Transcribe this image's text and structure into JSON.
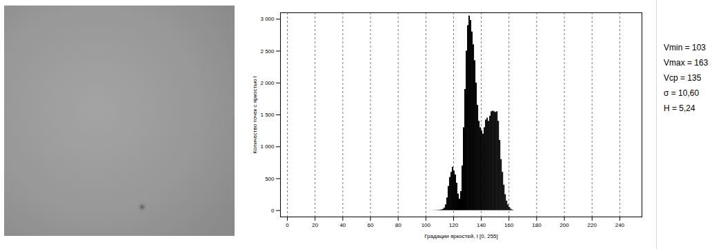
{
  "chart_data": {
    "type": "histogram",
    "xlabel": "Градации яркостей, I [0, 255]",
    "ylabel": "Количество точек с яркостью I",
    "bins": [
      103,
      104,
      105,
      106,
      107,
      108,
      109,
      110,
      111,
      112,
      113,
      114,
      115,
      116,
      117,
      118,
      119,
      120,
      121,
      122,
      123,
      124,
      125,
      126,
      127,
      128,
      129,
      130,
      131,
      132,
      133,
      134,
      135,
      136,
      137,
      138,
      139,
      140,
      141,
      142,
      143,
      144,
      145,
      146,
      147,
      148,
      149,
      150,
      151,
      152,
      153,
      154,
      155,
      156,
      157,
      158,
      159,
      160,
      161,
      162,
      163,
      164
    ],
    "values": [
      1,
      1,
      2,
      2,
      3,
      4,
      5,
      8,
      12,
      20,
      40,
      90,
      200,
      380,
      520,
      600,
      680,
      620,
      560,
      430,
      260,
      180,
      300,
      700,
      1300,
      1900,
      2500,
      2900,
      3050,
      2980,
      2800,
      2600,
      2350,
      2000,
      1650,
      1400,
      1300,
      1250,
      1200,
      1300,
      1420,
      1450,
      1400,
      1480,
      1550,
      1560,
      1550,
      1540,
      1550,
      1400,
      1100,
      800,
      600,
      400,
      250,
      150,
      90,
      50,
      25,
      10,
      3
    ],
    "color": "#000000",
    "xlim": [
      -5,
      256
    ],
    "xticks": [
      0,
      20,
      40,
      60,
      80,
      100,
      120,
      140,
      160,
      180,
      200,
      220,
      240
    ],
    "ylim": [
      -100,
      3100
    ],
    "yticks": [
      0,
      500,
      {
        "value": 1000,
        "label": "1 000"
      },
      {
        "value": 1500,
        "label": "1 500"
      },
      {
        "value": 2000,
        "label": "2 000"
      },
      {
        "value": 2500,
        "label": "2 500"
      },
      {
        "value": 3000,
        "label": "3 000"
      }
    ],
    "grid": true,
    "stats": [
      "Vmin = 103",
      "Vmax = 163",
      "Vcp = 135",
      "σ = 10,60",
      "H = 5,24"
    ]
  }
}
